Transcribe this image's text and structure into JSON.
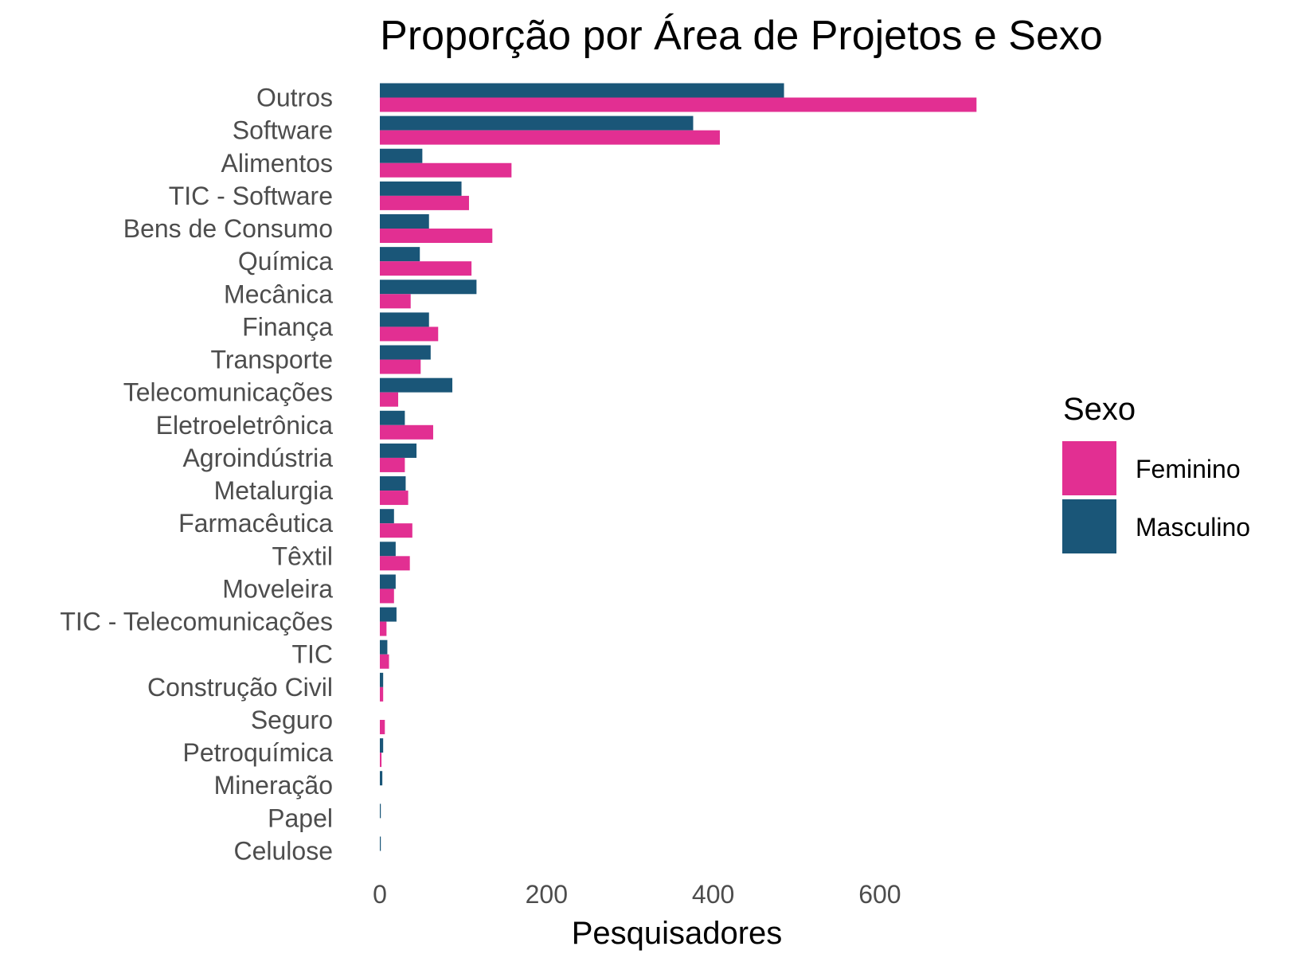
{
  "chart_data": {
    "type": "bar",
    "orientation": "horizontal",
    "title": "Proporção por Área de Projetos e Sexo",
    "xlabel": "Pesquisadores",
    "ylabel": "",
    "xlim": [
      0,
      760
    ],
    "xticks": [
      0,
      200,
      400,
      600
    ],
    "grid": false,
    "legend_title": "Sexo",
    "legend_position": "right",
    "categories": [
      "Outros",
      "Software",
      "Alimentos",
      "TIC - Software",
      "Bens de Consumo",
      "Química",
      "Mecânica",
      "Finança",
      "Transporte",
      "Telecomunicações",
      "Eletroeletrônica",
      "Agroindústria",
      "Metalurgia",
      "Farmacêutica",
      "Têxtil",
      "Moveleira",
      "TIC - Telecomunicações",
      "TIC",
      "Construção Civil",
      "Seguro",
      "Petroquímica",
      "Mineração",
      "Papel",
      "Celulose"
    ],
    "series": [
      {
        "name": "Feminino",
        "color": "#e22f92",
        "values": [
          716,
          408,
          158,
          107,
          135,
          110,
          37,
          70,
          49,
          22,
          64,
          30,
          34,
          39,
          36,
          17,
          8,
          11,
          4,
          6,
          2,
          0,
          0,
          0
        ]
      },
      {
        "name": "Masculino",
        "color": "#1a5678",
        "values": [
          485,
          376,
          51,
          98,
          59,
          48,
          116,
          59,
          61,
          87,
          30,
          44,
          31,
          17,
          19,
          19,
          20,
          9,
          4,
          0,
          4,
          3,
          1,
          1
        ]
      }
    ]
  }
}
